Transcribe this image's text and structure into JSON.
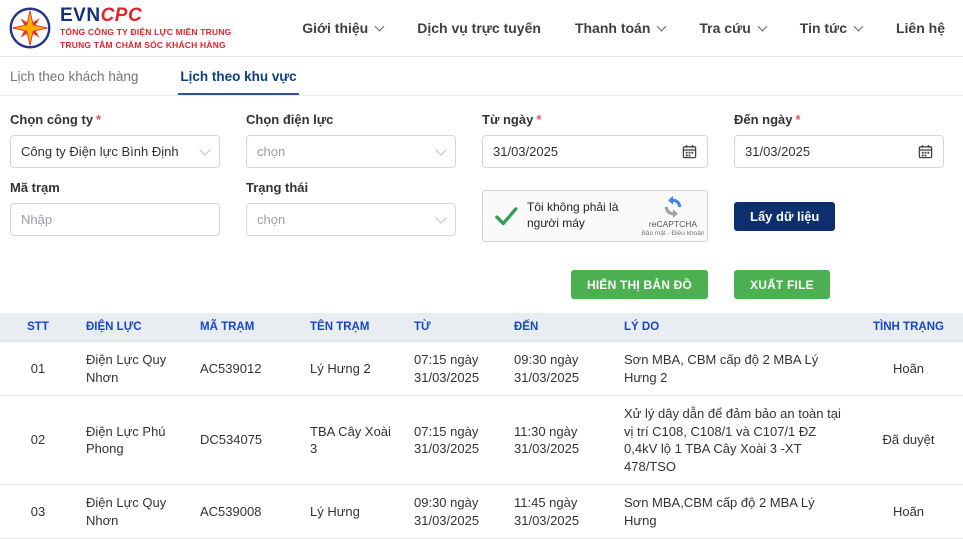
{
  "header": {
    "logo": {
      "brand_evn": "EVN",
      "brand_cpc": "CPC",
      "line1": "TỔNG CÔNG TY ĐIỆN LỰC MIỀN TRUNG",
      "line2": "TRUNG TÂM CHĂM SÓC KHÁCH HÀNG"
    },
    "nav": [
      {
        "label": "Giới thiệu",
        "has_dropdown": true
      },
      {
        "label": "Dịch vụ trực tuyến",
        "has_dropdown": false
      },
      {
        "label": "Thanh toán",
        "has_dropdown": true
      },
      {
        "label": "Tra cứu",
        "has_dropdown": true
      },
      {
        "label": "Tin tức",
        "has_dropdown": true
      },
      {
        "label": "Liên hệ",
        "has_dropdown": false
      }
    ]
  },
  "tabs": [
    {
      "label": "Lịch theo khách hàng",
      "active": false
    },
    {
      "label": "Lịch theo khu vực",
      "active": true
    }
  ],
  "form": {
    "company": {
      "label": "Chọn công ty",
      "required": "*",
      "value": "Công ty Điện lực Bình Định"
    },
    "power_unit": {
      "label": "Chọn điện lực",
      "placeholder": "chọn"
    },
    "from_date": {
      "label": "Từ ngày",
      "required": "*",
      "value": "31/03/2025"
    },
    "to_date": {
      "label": "Đến ngày",
      "required": "*",
      "value": "31/03/2025"
    },
    "station_code": {
      "label": "Mã trạm",
      "placeholder": "Nhập"
    },
    "status": {
      "label": "Trạng thái",
      "placeholder": "chọn"
    },
    "recaptcha": {
      "label": "Tôi không phải là người máy",
      "brand": "reCAPTCHA",
      "links": "Bảo mật - Điều khoản"
    },
    "buttons": {
      "get_data": "Lấy dữ liệu",
      "show_map": "HIỂN THỊ BẢN ĐỒ",
      "export_file": "XUẤT FILE"
    }
  },
  "table": {
    "headers": [
      "STT",
      "ĐIỆN LỰC",
      "MÃ TRẠM",
      "TÊN TRẠM",
      "TỪ",
      "ĐẾN",
      "LÝ DO",
      "TÌNH TRẠNG"
    ],
    "rows": [
      [
        "01",
        "Điện Lực Quy Nhơn",
        "AC539012",
        "Lý Hưng 2",
        "07:15 ngày 31/03/2025",
        "09:30 ngày 31/03/2025",
        "Sơn MBA, CBM cấp độ 2 MBA Lý Hưng 2",
        "Hoãn"
      ],
      [
        "02",
        "Điện Lực Phú Phong",
        "DC534075",
        "TBA Cây Xoài 3",
        "07:15 ngày 31/03/2025",
        "11:30 ngày 31/03/2025",
        "Xử lý dây dẫn để đảm bảo an toàn tại vị trí C108, C108/1 và C107/1 ĐZ 0,4kV lộ 1 TBA Cây Xoài 3 -XT 478/TSO",
        "Đã duyệt"
      ],
      [
        "03",
        "Điện Lực Quy Nhơn",
        "AC539008",
        "Lý Hưng",
        "09:30 ngày 31/03/2025",
        "11:45 ngày 31/03/2025",
        "Sơn MBA,CBM cấp độ 2 MBA Lý Hưng",
        "Hoãn"
      ]
    ]
  },
  "colors": {
    "brand_navy": "#14317f",
    "brand_red": "#e0242a",
    "tab_active": "#0c3c8c",
    "table_header_text": "#1546c8",
    "table_header_bg": "#e9edf2",
    "button_green": "#4caf50",
    "button_navy": "#0e2f6d",
    "recaptcha_check_green": "#2e9e4f"
  }
}
